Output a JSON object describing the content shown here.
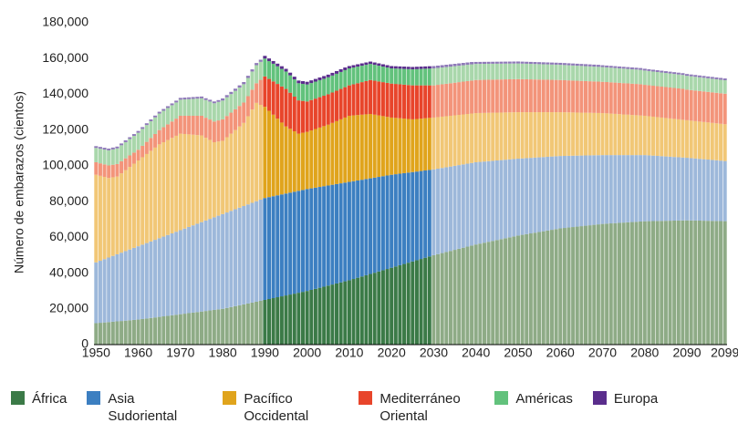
{
  "chart_data": {
    "type": "stacked_bar",
    "y_label": "Número de embarazos (cientos)",
    "x": [
      1950,
      1951,
      1952,
      1953,
      1954,
      1955,
      1956,
      1957,
      1958,
      1959,
      1960,
      1961,
      1962,
      1963,
      1964,
      1965,
      1966,
      1967,
      1968,
      1969,
      1970,
      1971,
      1972,
      1973,
      1974,
      1975,
      1976,
      1977,
      1978,
      1979,
      1980,
      1981,
      1982,
      1983,
      1984,
      1985,
      1986,
      1987,
      1988,
      1989,
      1990,
      1991,
      1992,
      1993,
      1994,
      1995,
      1996,
      1997,
      1998,
      1999,
      2000,
      2001,
      2002,
      2003,
      2004,
      2005,
      2006,
      2007,
      2008,
      2009,
      2010,
      2011,
      2012,
      2013,
      2014,
      2015,
      2016,
      2017,
      2018,
      2019,
      2020,
      2021,
      2022,
      2023,
      2024,
      2025,
      2026,
      2027,
      2028,
      2029,
      2030,
      2031,
      2032,
      2033,
      2034,
      2035,
      2036,
      2037,
      2038,
      2039,
      2040,
      2041,
      2042,
      2043,
      2044,
      2045,
      2046,
      2047,
      2048,
      2049,
      2050,
      2051,
      2052,
      2053,
      2054,
      2055,
      2056,
      2057,
      2058,
      2059,
      2060,
      2061,
      2062,
      2063,
      2064,
      2065,
      2066,
      2067,
      2068,
      2069,
      2070,
      2071,
      2072,
      2073,
      2074,
      2075,
      2076,
      2077,
      2078,
      2079,
      2080,
      2081,
      2082,
      2083,
      2084,
      2085,
      2086,
      2087,
      2088,
      2089,
      2090,
      2091,
      2092,
      2093,
      2094,
      2095,
      2096,
      2097,
      2098,
      2099
    ],
    "highlight_range": [
      1990,
      2029
    ],
    "series": [
      {
        "name": "África",
        "color": "#3b7a47",
        "faded_color": "#8eab86",
        "values": [
          12000,
          12200,
          12400,
          12600,
          12800,
          13000,
          13200,
          13400,
          13600,
          13800,
          14000,
          14300,
          14600,
          14900,
          15200,
          15500,
          15800,
          16100,
          16400,
          16700,
          17000,
          17300,
          17600,
          17900,
          18200,
          18500,
          18800,
          19100,
          19400,
          19700,
          20000,
          20500,
          21000,
          21500,
          22000,
          22500,
          23000,
          23500,
          24000,
          24500,
          25000,
          25500,
          26000,
          26500,
          27000,
          27500,
          28000,
          28500,
          29000,
          29500,
          30000,
          30600,
          31200,
          31800,
          32400,
          33000,
          33600,
          34200,
          34800,
          35400,
          36000,
          36700,
          37400,
          38100,
          38800,
          39500,
          40200,
          40900,
          41600,
          42300,
          43000,
          43700,
          44400,
          45100,
          45800,
          46500,
          47200,
          47900,
          48600,
          49300,
          50000,
          50600,
          51200,
          51800,
          52400,
          53000,
          53600,
          54200,
          54800,
          55400,
          56000,
          56500,
          57000,
          57500,
          58000,
          58500,
          59000,
          59500,
          60000,
          60500,
          61000,
          61400,
          61800,
          62200,
          62600,
          63000,
          63400,
          63800,
          64200,
          64600,
          65000,
          65250,
          65500,
          65750,
          66000,
          66250,
          66500,
          66750,
          67000,
          67250,
          67500,
          67650,
          67800,
          67950,
          68100,
          68250,
          68400,
          68550,
          68700,
          68850,
          69000,
          69050,
          69100,
          69150,
          69200,
          69250,
          69300,
          69350,
          69400,
          69450,
          69500,
          69450,
          69400,
          69350,
          69300,
          69250,
          69200,
          69150,
          69100,
          69050
        ]
      },
      {
        "name": "Asia Sudoriental",
        "color": "#3c7fc1",
        "faded_color": "#9db8da",
        "values": [
          34000,
          34700,
          35400,
          36100,
          36800,
          37500,
          38200,
          38900,
          39600,
          40300,
          41000,
          41600,
          42200,
          42800,
          43400,
          44000,
          44600,
          45200,
          45800,
          46400,
          47000,
          47600,
          48200,
          48800,
          49400,
          50000,
          50600,
          51200,
          51800,
          52400,
          53000,
          53400,
          53800,
          54200,
          54600,
          55000,
          55400,
          55800,
          56200,
          56600,
          57000,
          57000,
          57000,
          57000,
          57000,
          57000,
          57000,
          57000,
          57000,
          57000,
          57000,
          56800,
          56600,
          56400,
          56200,
          56000,
          55800,
          55600,
          55400,
          55200,
          55000,
          54700,
          54400,
          54100,
          53800,
          53500,
          53200,
          52900,
          52600,
          52300,
          52000,
          51600,
          51200,
          50800,
          50400,
          50000,
          49600,
          49200,
          48800,
          48400,
          48000,
          47800,
          47600,
          47400,
          47200,
          47000,
          46800,
          46600,
          46400,
          46200,
          46000,
          45700,
          45400,
          45100,
          44800,
          44500,
          44200,
          43900,
          43600,
          43300,
          43000,
          42750,
          42500,
          42250,
          42000,
          41750,
          41500,
          41250,
          41000,
          40750,
          40500,
          40300,
          40100,
          39900,
          39700,
          39500,
          39300,
          39100,
          38900,
          38700,
          38500,
          38350,
          38200,
          38050,
          37900,
          37750,
          37600,
          37450,
          37300,
          37150,
          37000,
          36800,
          36600,
          36400,
          36200,
          36000,
          35800,
          35600,
          35400,
          35200,
          35000,
          34850,
          34700,
          34550,
          34400,
          34250,
          34100,
          33950,
          33800,
          33650
        ]
      },
      {
        "name": "Pacífico Occidental",
        "color": "#e0a41c",
        "faded_color": "#f1c776",
        "values": [
          49000,
          47500,
          46000,
          44500,
          44000,
          43500,
          44400,
          45300,
          46200,
          47100,
          48000,
          48900,
          49800,
          50700,
          51600,
          52500,
          52800,
          53100,
          53400,
          53700,
          54000,
          52900,
          51800,
          50700,
          49600,
          48500,
          46300,
          44200,
          42000,
          41500,
          41000,
          42100,
          43200,
          44300,
          45400,
          46500,
          49300,
          52200,
          55000,
          53000,
          51000,
          48300,
          45600,
          42900,
          40200,
          37500,
          35700,
          33800,
          32000,
          32000,
          32000,
          32400,
          32800,
          33200,
          33600,
          34000,
          34600,
          35200,
          35800,
          36400,
          37000,
          36800,
          36600,
          36400,
          36200,
          36000,
          35200,
          34400,
          33600,
          32800,
          32000,
          31500,
          31000,
          30500,
          30000,
          29500,
          29400,
          29300,
          29200,
          29100,
          29000,
          28850,
          28700,
          28550,
          28400,
          28250,
          28100,
          27950,
          27800,
          27650,
          27500,
          27350,
          27200,
          27050,
          26900,
          26750,
          26600,
          26450,
          26300,
          26150,
          26000,
          25850,
          25700,
          25550,
          25400,
          25250,
          25100,
          24950,
          24800,
          24650,
          24500,
          24400,
          24300,
          24200,
          24100,
          24000,
          23900,
          23800,
          23700,
          23600,
          23500,
          23350,
          23200,
          23050,
          22900,
          22750,
          22600,
          22450,
          22300,
          22150,
          22000,
          21900,
          21800,
          21700,
          21600,
          21500,
          21400,
          21300,
          21200,
          21100,
          21000,
          20950,
          20900,
          20850,
          20800,
          20750,
          20700,
          20650,
          20600,
          20550
        ]
      },
      {
        "name": "Mediterráneo Oriental",
        "color": "#e8452b",
        "faded_color": "#f3947a",
        "values": [
          7000,
          7000,
          7000,
          7000,
          7000,
          7000,
          6800,
          6600,
          6400,
          6200,
          6000,
          6400,
          6800,
          7200,
          7600,
          8000,
          8400,
          8800,
          9200,
          9600,
          10000,
          10200,
          10400,
          10600,
          10800,
          11000,
          11200,
          11400,
          11600,
          11800,
          12000,
          11900,
          11750,
          11600,
          11500,
          11400,
          11250,
          11100,
          11000,
          14000,
          17000,
          17800,
          18600,
          19400,
          20200,
          21000,
          20200,
          19400,
          18600,
          17800,
          17000,
          17000,
          17000,
          17000,
          17000,
          17000,
          17000,
          17000,
          17000,
          17000,
          17000,
          17400,
          17800,
          18200,
          18600,
          19000,
          19000,
          19000,
          19000,
          19000,
          19000,
          19000,
          19000,
          19000,
          19000,
          19000,
          18800,
          18600,
          18400,
          18200,
          18000,
          18050,
          18100,
          18150,
          18200,
          18250,
          18300,
          18350,
          18400,
          18450,
          18500,
          18500,
          18500,
          18500,
          18500,
          18500,
          18500,
          18500,
          18500,
          18500,
          18500,
          18450,
          18400,
          18350,
          18300,
          18250,
          18200,
          18150,
          18100,
          18050,
          18000,
          17950,
          17900,
          17850,
          17800,
          17750,
          17700,
          17650,
          17600,
          17550,
          17500,
          17500,
          17500,
          17500,
          17500,
          17500,
          17500,
          17500,
          17500,
          17500,
          17300,
          17300,
          17300,
          17300,
          17300,
          17300,
          17300,
          17300,
          17300,
          17300,
          17100,
          17100,
          17100,
          17100,
          17100,
          17100,
          17100,
          17100,
          17100,
          17100
        ]
      },
      {
        "name": "Américas",
        "color": "#62c27c",
        "faded_color": "#a9d7ab",
        "values": [
          8000,
          8150,
          8300,
          8450,
          8600,
          8750,
          8900,
          9050,
          9200,
          9350,
          9500,
          9450,
          9400,
          9350,
          9300,
          9250,
          9200,
          9150,
          9100,
          9050,
          9000,
          9150,
          9300,
          9450,
          9600,
          9750,
          9900,
          10050,
          10200,
          10350,
          10500,
          10450,
          10400,
          10350,
          10300,
          10250,
          10200,
          10150,
          10100,
          10050,
          10000,
          9950,
          9900,
          9850,
          9800,
          9750,
          9700,
          9650,
          9600,
          9550,
          9500,
          9500,
          9500,
          9500,
          9500,
          9500,
          9500,
          9500,
          9500,
          9500,
          9500,
          9400,
          9300,
          9200,
          9100,
          9000,
          8900,
          8800,
          8700,
          8600,
          8500,
          8600,
          8700,
          8800,
          8900,
          9000,
          9100,
          9200,
          9300,
          9400,
          9500,
          9450,
          9400,
          9350,
          9300,
          9250,
          9200,
          9150,
          9100,
          9050,
          9000,
          8975,
          8950,
          8925,
          8900,
          8875,
          8850,
          8825,
          8800,
          8775,
          8750,
          8725,
          8700,
          8675,
          8650,
          8625,
          8600,
          8575,
          8550,
          8525,
          8500,
          8475,
          8450,
          8425,
          8400,
          8375,
          8350,
          8325,
          8300,
          8275,
          8250,
          8225,
          8200,
          8175,
          8150,
          8125,
          8100,
          8075,
          8050,
          8025,
          8000,
          7975,
          7950,
          7925,
          7900,
          7875,
          7850,
          7825,
          7800,
          7775,
          7750,
          7725,
          7700,
          7675,
          7650,
          7625,
          7600,
          7575,
          7550,
          7525
        ]
      },
      {
        "name": "Europa",
        "color": "#5a2d8c",
        "faded_color": "#8e79b8",
        "values": [
          1000,
          1000,
          1000,
          1000,
          1000,
          1000,
          1000,
          1000,
          1000,
          1000,
          1000,
          1000,
          1000,
          1000,
          1000,
          1000,
          1000,
          1000,
          1000,
          1000,
          1000,
          1000,
          1000,
          1000,
          1000,
          1000,
          1000,
          1000,
          1000,
          1000,
          1200,
          1200,
          1200,
          1200,
          1200,
          1200,
          1200,
          1200,
          1200,
          1200,
          1500,
          1500,
          1500,
          1500,
          1500,
          1500,
          1500,
          1500,
          1500,
          1500,
          1500,
          1500,
          1500,
          1500,
          1500,
          1500,
          1500,
          1500,
          1500,
          1500,
          1300,
          1300,
          1300,
          1300,
          1300,
          1300,
          1300,
          1300,
          1300,
          1300,
          1300,
          1300,
          1300,
          1300,
          1300,
          1300,
          1300,
          1300,
          1300,
          1300,
          1300,
          1300,
          1300,
          1300,
          1300,
          1300,
          1300,
          1300,
          1300,
          1300,
          1100,
          1100,
          1100,
          1100,
          1100,
          1100,
          1100,
          1100,
          1100,
          1100,
          1100,
          1100,
          1100,
          1100,
          1100,
          1100,
          1100,
          1100,
          1100,
          1100,
          1100,
          1100,
          1100,
          1100,
          1100,
          1100,
          1100,
          1100,
          1100,
          1100,
          1000,
          1000,
          1000,
          1000,
          1000,
          1000,
          1000,
          1000,
          1000,
          1000,
          1000,
          1000,
          1000,
          1000,
          1000,
          1000,
          1000,
          1000,
          1000,
          1000,
          1000,
          1000,
          1000,
          1000,
          1000,
          1000,
          1000,
          1000,
          1000,
          1000
        ]
      }
    ],
    "xlim": [
      1950,
      2100
    ],
    "xticks": [
      1950,
      1960,
      1970,
      1980,
      1990,
      2000,
      2010,
      2020,
      2030,
      2040,
      2050,
      2060,
      2070,
      2080,
      2090,
      2099
    ],
    "ylim": [
      0,
      180000
    ],
    "yticks": [
      0,
      {
        "value": 20000,
        "label": "20,000"
      },
      {
        "value": 40000,
        "label": "40,000"
      },
      {
        "value": 60000,
        "label": "60,000"
      },
      {
        "value": 80000,
        "label": "80,000"
      },
      {
        "value": 100000,
        "label": "100,000"
      },
      {
        "value": 120000,
        "label": "120,000"
      },
      {
        "value": 140000,
        "label": "140,000"
      },
      {
        "value": 160000,
        "label": "160,000"
      },
      {
        "value": 180000,
        "label": "180,000"
      }
    ],
    "grid": false
  }
}
